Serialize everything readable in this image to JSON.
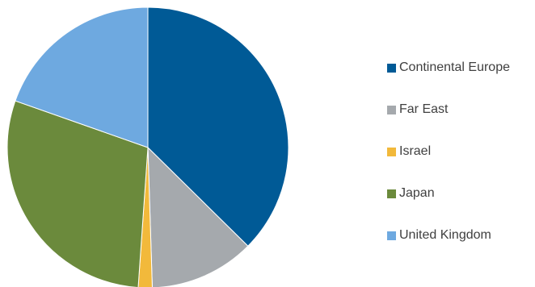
{
  "chart_data": {
    "type": "pie",
    "title": "",
    "legend_position": "right",
    "start_angle_deg": 0,
    "direction": "clockwise",
    "slices": [
      {
        "label": "Continental Europe",
        "value": 37.4,
        "color": "#005a96"
      },
      {
        "label": "Far East",
        "value": 12.1,
        "color": "#a5a9ad"
      },
      {
        "label": "Israel",
        "value": 1.6,
        "color": "#f2b93b"
      },
      {
        "label": "Japan",
        "value": 29.3,
        "color": "#6b8a3c"
      },
      {
        "label": "United Kingdom",
        "value": 19.6,
        "color": "#6ea9e0"
      }
    ]
  }
}
